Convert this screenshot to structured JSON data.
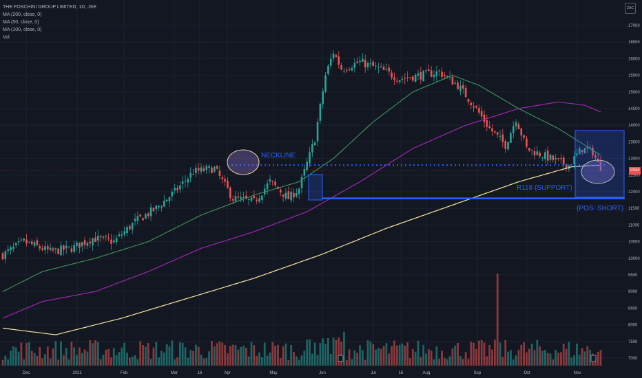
{
  "legend": {
    "title": "THE FOSCHINI GROUP LIMITED, 1D, JSE",
    "items": [
      "MA (200, close, 0)",
      "MA (50, close, 0)",
      "MA (100, close, 0)",
      "Vol"
    ]
  },
  "currency_badge": "ZAC",
  "last_price_label": "12640",
  "annotations": {
    "neckline": "NECKLINE",
    "support": "R118 (SUPPORT)",
    "position": "(POS: SHORT)"
  },
  "colors": {
    "background": "#131722",
    "up": "#26a69a",
    "down": "#ef5350",
    "ma200": "#f5e6a3",
    "ma50": "#388e5c",
    "ma100": "#9c27b0",
    "annotation": "#2962ff",
    "grid": "#1e222d"
  },
  "chart_data": {
    "type": "candlestick",
    "yaxis": {
      "ticks": [
        7000,
        7500,
        8000,
        8500,
        9000,
        9500,
        10000,
        10500,
        11000,
        11500,
        12000,
        12500,
        13000,
        13500,
        14000,
        14500,
        15000,
        15500,
        16000,
        16500,
        17000
      ],
      "range": [
        6800,
        17400
      ]
    },
    "xaxis": {
      "ticks": [
        "Dec",
        "2021",
        "Feb",
        "Mar",
        "16",
        "Apr",
        "May",
        "Jun",
        "Jul",
        "16",
        "Aug",
        "Sep",
        "Oct",
        "Nov"
      ]
    },
    "price_keypoints": [
      [
        0,
        10100
      ],
      [
        8,
        10500
      ],
      [
        18,
        10200
      ],
      [
        26,
        10300
      ],
      [
        34,
        10600
      ],
      [
        42,
        10500
      ],
      [
        50,
        11100
      ],
      [
        58,
        11500
      ],
      [
        65,
        12000
      ],
      [
        72,
        12600
      ],
      [
        80,
        12700
      ],
      [
        87,
        11800
      ],
      [
        95,
        11700
      ],
      [
        101,
        12300
      ],
      [
        108,
        11800
      ],
      [
        112,
        12100
      ],
      [
        118,
        13600
      ],
      [
        122,
        15500
      ],
      [
        125,
        16200
      ],
      [
        128,
        15700
      ],
      [
        135,
        15900
      ],
      [
        142,
        15700
      ],
      [
        150,
        15400
      ],
      [
        158,
        15500
      ],
      [
        165,
        15600
      ],
      [
        172,
        15200
      ],
      [
        178,
        14600
      ],
      [
        184,
        13900
      ],
      [
        190,
        13400
      ],
      [
        194,
        14200
      ],
      [
        198,
        13300
      ],
      [
        204,
        13100
      ],
      [
        210,
        12900
      ],
      [
        214,
        12800
      ],
      [
        219,
        13300
      ],
      [
        223,
        13200
      ],
      [
        226,
        12640
      ]
    ],
    "ma200_keypoints": [
      [
        0,
        7900
      ],
      [
        20,
        7700
      ],
      [
        45,
        8200
      ],
      [
        70,
        8800
      ],
      [
        95,
        9400
      ],
      [
        120,
        10100
      ],
      [
        145,
        10900
      ],
      [
        170,
        11600
      ],
      [
        195,
        12300
      ],
      [
        215,
        12750
      ],
      [
        226,
        12800
      ]
    ],
    "ma100_keypoints": [
      [
        0,
        8200
      ],
      [
        15,
        8700
      ],
      [
        35,
        9000
      ],
      [
        55,
        9600
      ],
      [
        75,
        10300
      ],
      [
        95,
        10800
      ],
      [
        115,
        11400
      ],
      [
        135,
        12300
      ],
      [
        155,
        13300
      ],
      [
        175,
        14000
      ],
      [
        195,
        14500
      ],
      [
        210,
        14700
      ],
      [
        220,
        14600
      ],
      [
        226,
        14400
      ]
    ],
    "ma50_keypoints": [
      [
        0,
        9000
      ],
      [
        15,
        9600
      ],
      [
        35,
        10000
      ],
      [
        55,
        10500
      ],
      [
        75,
        11300
      ],
      [
        95,
        11900
      ],
      [
        112,
        12300
      ],
      [
        125,
        13000
      ],
      [
        140,
        14100
      ],
      [
        155,
        15000
      ],
      [
        170,
        15500
      ],
      [
        180,
        15200
      ],
      [
        195,
        14500
      ],
      [
        210,
        13900
      ],
      [
        220,
        13400
      ],
      [
        226,
        13100
      ]
    ],
    "volume": {
      "max": 9600,
      "spike_index": 187
    },
    "neckline_level": 12800,
    "support_level": 11800
  }
}
